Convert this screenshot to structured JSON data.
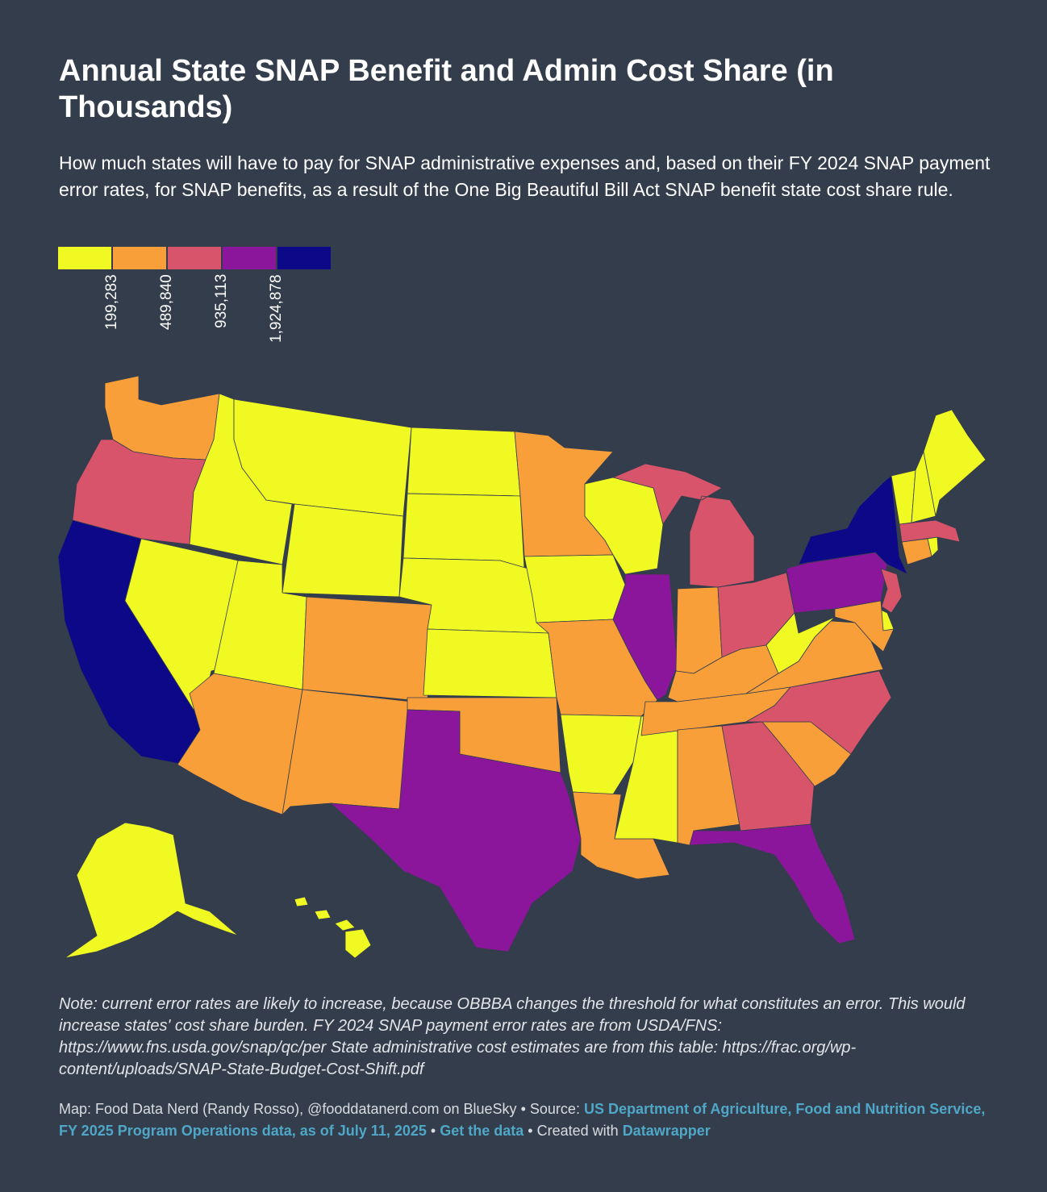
{
  "title": "Annual State SNAP Benefit and Admin Cost Share (in Thousands)",
  "subtitle": "How much states will have to pay for SNAP administrative expenses and, based on their FY 2024 SNAP payment error rates, for SNAP benefits, as a result of the One Big Beautiful Bill Act SNAP benefit state cost share rule.",
  "legend": {
    "colors": [
      "#f0f921",
      "#f89f3a",
      "#d8546b",
      "#8b169b",
      "#0d0887"
    ],
    "thresholds": [
      "199,283",
      "489,840",
      "935,113",
      "1,924,878"
    ]
  },
  "colors": {
    "background": "#343d4c",
    "link": "#4fa7c7"
  },
  "note": "Note: current error rates are likely to increase, because OBBBA changes the threshold for what constitutes an error. This would increase states' cost share burden. FY 2024 SNAP payment error rates are from USDA/FNS: https://www.fns.usda.gov/snap/qc/per State administrative cost estimates are from this table: https://frac.org/wp-content/uploads/SNAP-State-Budget-Cost-Shift.pdf",
  "footer": {
    "credit": "Map: Food Data Nerd (Randy Rosso), @fooddatanerd.com on BlueSky",
    "source_label": "Source:",
    "source_link": "US Department of Agriculture, Food and Nutrition Service, FY 2025 Program Operations data, as of July 11, 2025",
    "get_data": "Get the data",
    "created_with": "Created with",
    "datawrapper": "Datawrapper",
    "bullet": "•"
  },
  "states": {
    "WA": 1,
    "OR": 2,
    "CA": 4,
    "ID": 0,
    "NV": 0,
    "MT": 0,
    "WY": 0,
    "UT": 0,
    "AZ": 1,
    "CO": 1,
    "NM": 1,
    "ND": 0,
    "SD": 0,
    "NE": 0,
    "KS": 0,
    "OK": 1,
    "TX": 3,
    "MN": 1,
    "IA": 0,
    "MO": 1,
    "AR": 0,
    "LA": 1,
    "WI": 0,
    "IL": 3,
    "MS": 0,
    "MI": 2,
    "IN": 1,
    "OH": 2,
    "KY": 1,
    "TN": 1,
    "AL": 1,
    "GA": 2,
    "FL": 3,
    "SC": 1,
    "NC": 2,
    "VA": 1,
    "WV": 0,
    "PA": 3,
    "NY": 4,
    "NJ": 2,
    "DE": 0,
    "MD": 1,
    "CT": 1,
    "RI": 0,
    "MA": 2,
    "VT": 0,
    "NH": 0,
    "ME": 0,
    "AK": 0,
    "HI": 0
  }
}
